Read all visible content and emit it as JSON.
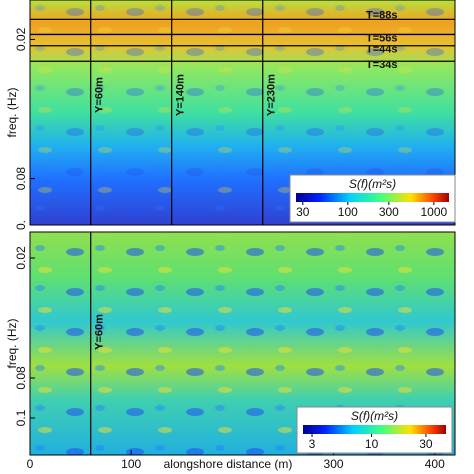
{
  "chart_data": [
    {
      "type": "heatmap",
      "ylabel": "freq. (Hz)",
      "ylim": [
        0.003,
        0.1
      ],
      "yticks": [
        0.02,
        0.08,
        {
          "value": 0.1,
          "label": "0."
        }
      ],
      "xlim": [
        0,
        420
      ],
      "vlines": [
        {
          "value": 60,
          "label": "Y=60m"
        },
        {
          "value": 140,
          "label": "Y=140m"
        },
        {
          "value": 230,
          "label": "Y=230m"
        }
      ],
      "hlines": [
        {
          "value": 0.011364,
          "label": "T=88s"
        },
        {
          "value": 0.017857,
          "label": "T=56s"
        },
        {
          "value": 0.022727,
          "label": "T=44s"
        },
        {
          "value": 0.029412,
          "label": "T=34s"
        }
      ],
      "colorbar": {
        "label": "S(f)(m²s)",
        "clim": [
          25,
          1500
        ],
        "ticks": [
          30,
          100,
          300,
          1000
        ],
        "log": true
      }
    },
    {
      "type": "heatmap",
      "ylabel": "freq. (Hz)",
      "xlabel": "alongshore distance (m)",
      "ylim": [
        0.007,
        0.1185
      ],
      "yticks": [
        0.02,
        0.08,
        0.1
      ],
      "xlim": [
        0,
        420
      ],
      "xticks": [
        0,
        100,
        300,
        400
      ],
      "vlines": [
        {
          "value": 60,
          "label": "Y=60m"
        }
      ],
      "colorbar": {
        "label": "S(f)(m²s)",
        "clim": [
          2.5,
          45
        ],
        "ticks": [
          3,
          10,
          30
        ],
        "log": true
      }
    }
  ]
}
